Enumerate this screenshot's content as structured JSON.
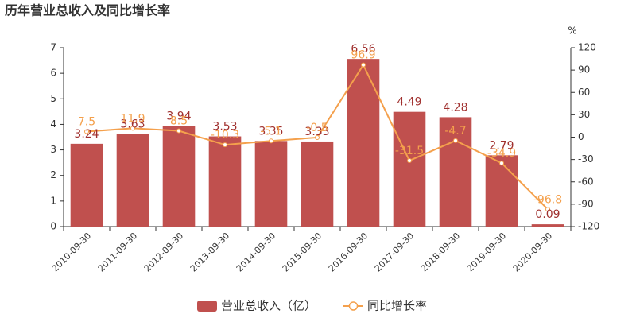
{
  "chart_data": {
    "type": "combo",
    "title": "历年营业总收入及同比增长率",
    "y2label": "%",
    "categories": [
      "2010-09-30",
      "2011-09-30",
      "2012-09-30",
      "2013-09-30",
      "2014-09-30",
      "2015-09-30",
      "2016-09-30",
      "2017-09-30",
      "2018-09-30",
      "2019-09-30",
      "2020-09-30"
    ],
    "series": [
      {
        "name": "营业总收入（亿）",
        "type": "bar",
        "color": "#c0504e",
        "values": [
          3.24,
          3.63,
          3.94,
          3.53,
          3.35,
          3.33,
          6.56,
          4.49,
          4.28,
          2.79,
          0.09
        ]
      },
      {
        "name": "同比增长率",
        "type": "line",
        "axis": "y2",
        "color": "#f4a04c",
        "values": [
          7.5,
          11.9,
          8.5,
          -10.3,
          -5.1,
          -0.5,
          96.9,
          -31.5,
          -4.7,
          -34.9,
          -96.8
        ]
      }
    ],
    "ylim": [
      0,
      7
    ],
    "yticks": [
      0,
      1,
      2,
      3,
      4,
      5,
      6,
      7
    ],
    "y2lim": [
      -120,
      120
    ],
    "y2ticks": [
      -120,
      -90,
      -60,
      -30,
      0,
      30,
      60,
      90,
      120
    ],
    "legend": "bottom"
  }
}
